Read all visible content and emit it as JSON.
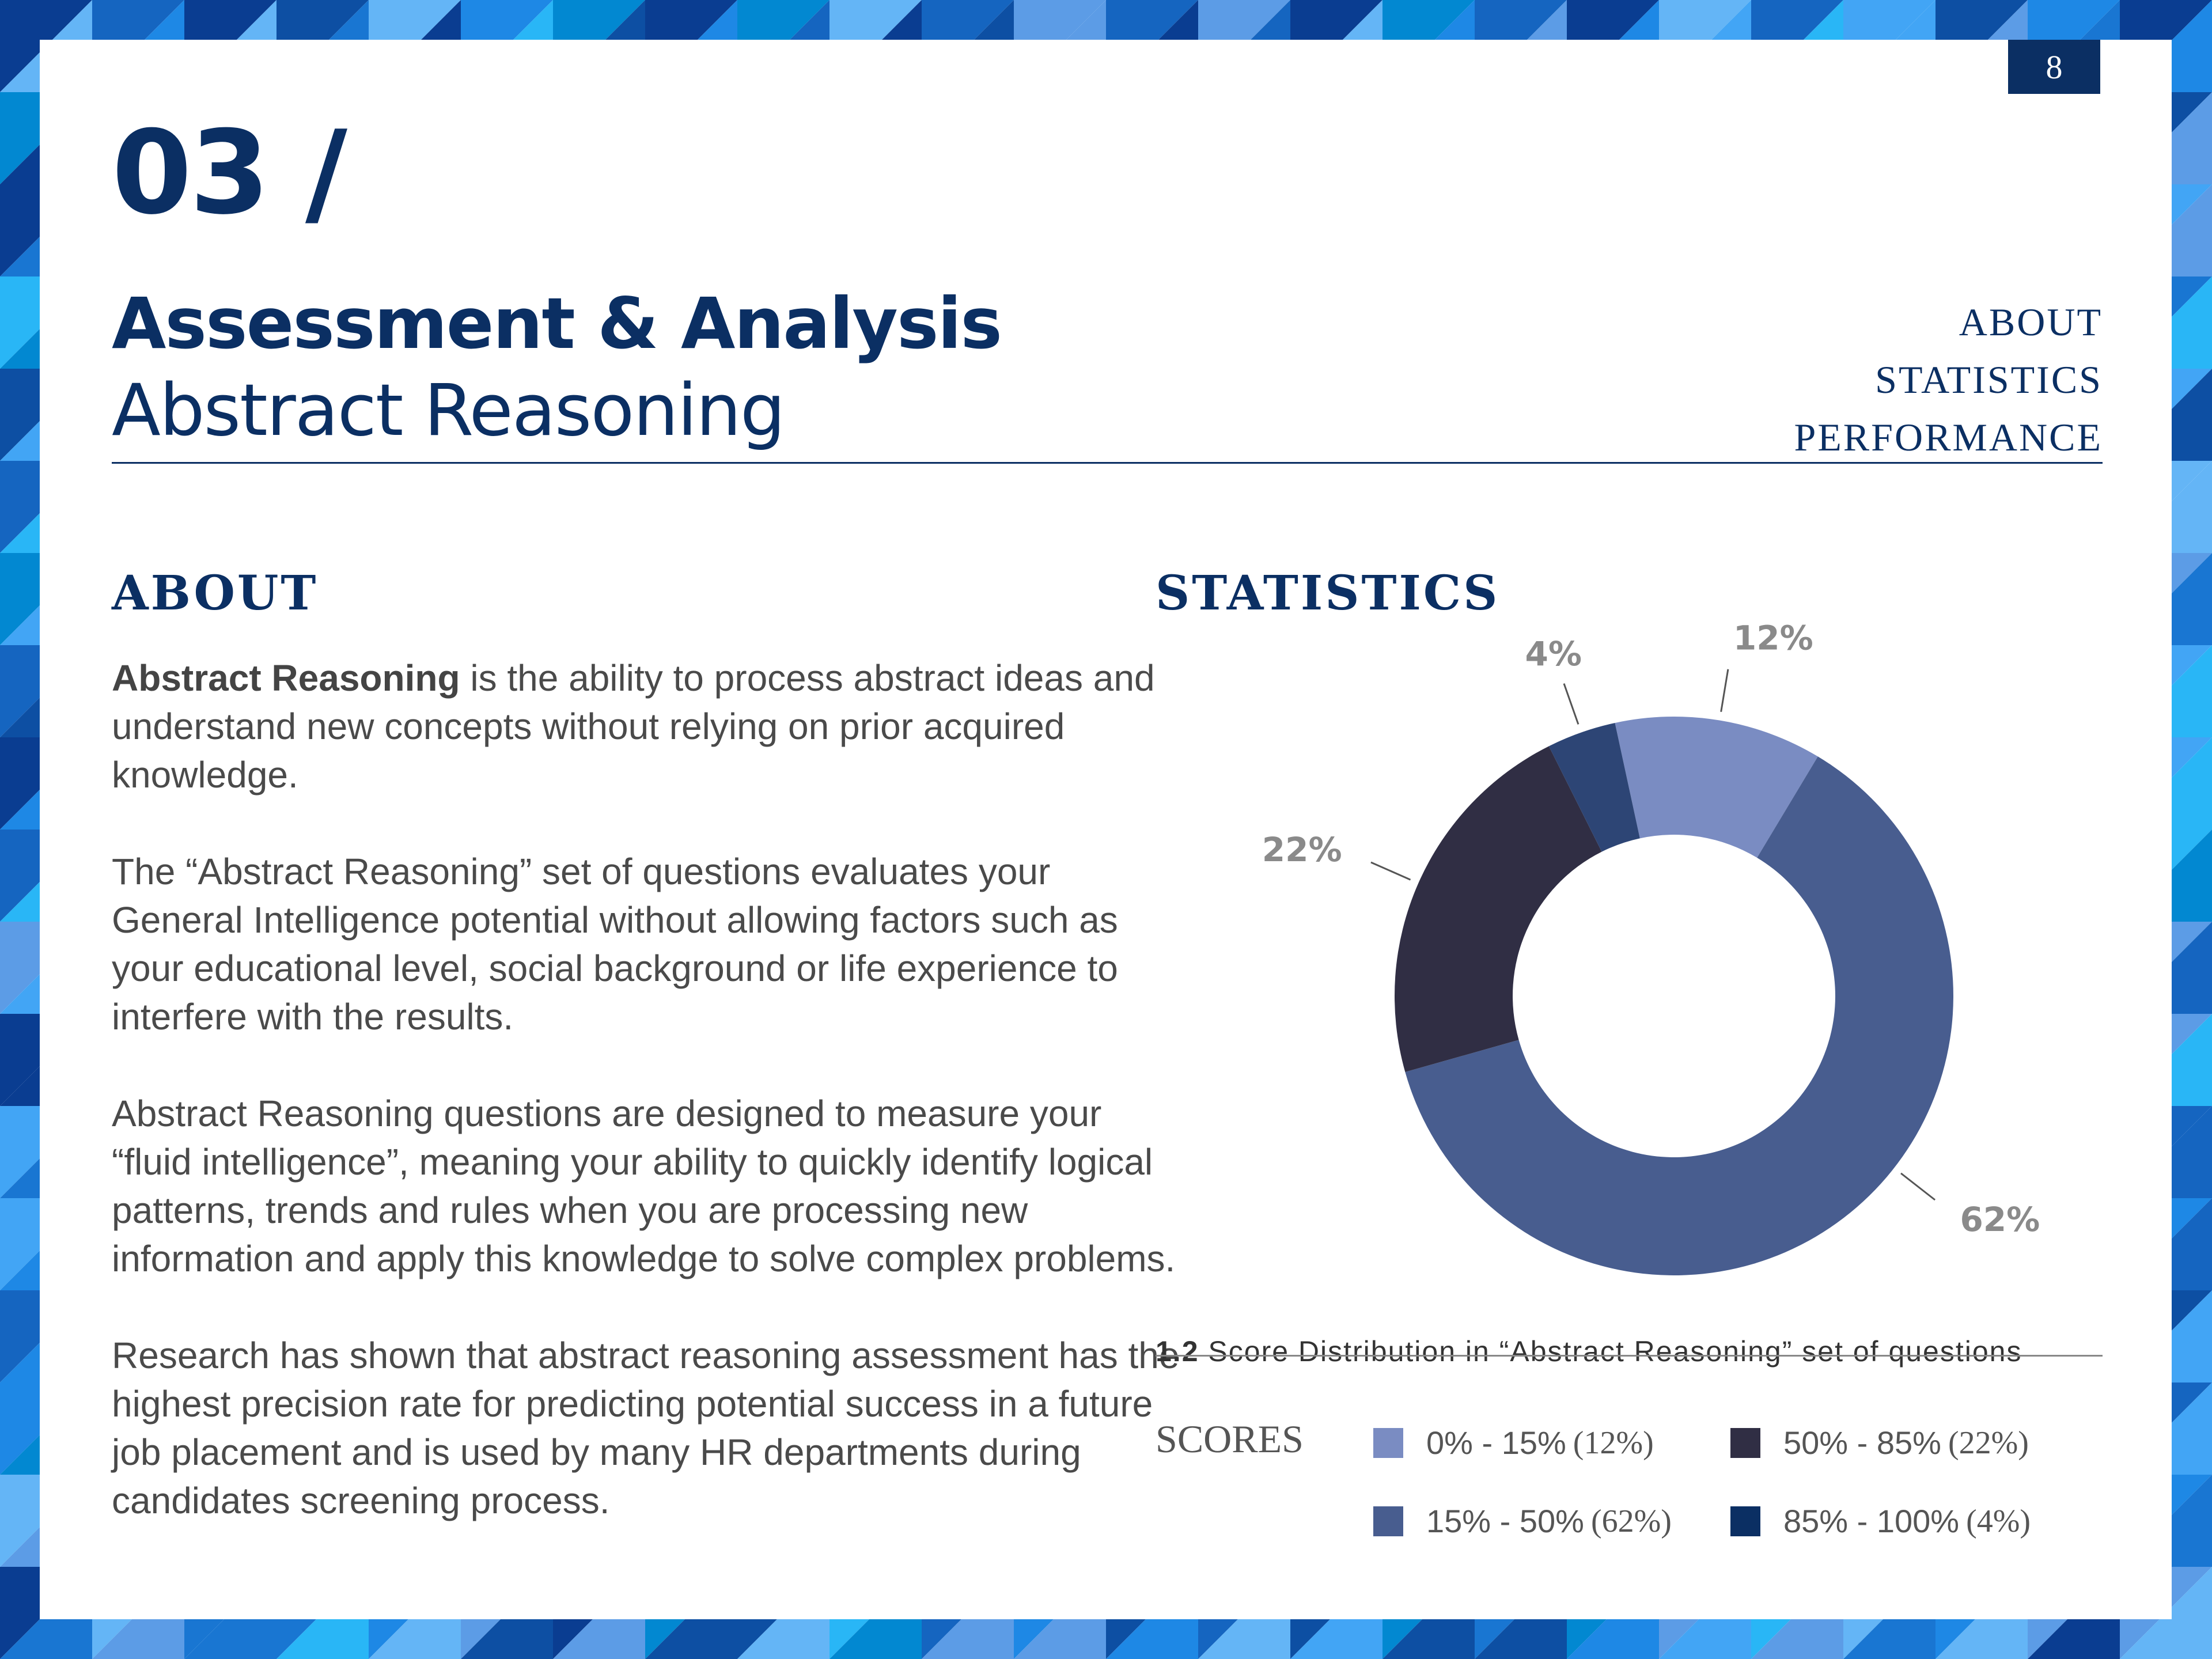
{
  "page": {
    "number": "8"
  },
  "header": {
    "chapter": "03 /",
    "title": "Assessment & Analysis",
    "subtitle": "Abstract Reasoning",
    "nav": [
      "ABOUT",
      "STATISTICS",
      "PERFORMANCE"
    ]
  },
  "about": {
    "heading": "ABOUT",
    "p1_bold": "Abstract Reasoning",
    "p1_rest": " is the ability to process abstract ideas and understand new concepts without relying on prior acquired knowledge.",
    "p2": "The “Abstract Reasoning” set of questions evaluates your General Intelligence potential without allowing factors such as your educational level, social background or life experience to interfere with the results.",
    "p3": "Abstract Reasoning questions are designed to measure your “fluid intelligence”, meaning your ability to quickly identify logical patterns, trends and rules when you are processing new information and apply this knowledge to solve complex problems.",
    "p4": "Research has shown that abstract reasoning assessment has the highest precision rate for predicting potential success in a future job placement and is used by many HR departments during candidates screening process."
  },
  "statistics": {
    "heading": "STATISTICS",
    "caption_num": "1.2",
    "caption_text": " Score Distribution in “Abstract Reasoning” set of questions",
    "scores_label": "SCORES"
  },
  "chart_data": {
    "type": "pie",
    "donut": true,
    "slices": [
      {
        "label": "0% - 15%",
        "value": 12,
        "display": "12%",
        "legend_pct": "(12%)",
        "color": "#7a8cc2"
      },
      {
        "label": "15% - 50%",
        "value": 62,
        "display": "62%",
        "legend_pct": "(62%)",
        "color": "#485d8f"
      },
      {
        "label": "50% - 85%",
        "value": 22,
        "display": "22%",
        "legend_pct": "(22%)",
        "color": "#302e44"
      },
      {
        "label": "85% - 100%",
        "value": 4,
        "display": "4%",
        "legend_pct": "(4%)",
        "color": "#2d4575"
      }
    ],
    "legend_swatch_colors": [
      "#7a8cc2",
      "#485d8f",
      "#302e44",
      "#0b2f63"
    ],
    "legend": "bottom"
  },
  "colors": {
    "navy": "#0b2f63",
    "label_gray": "#8a8a8a"
  }
}
